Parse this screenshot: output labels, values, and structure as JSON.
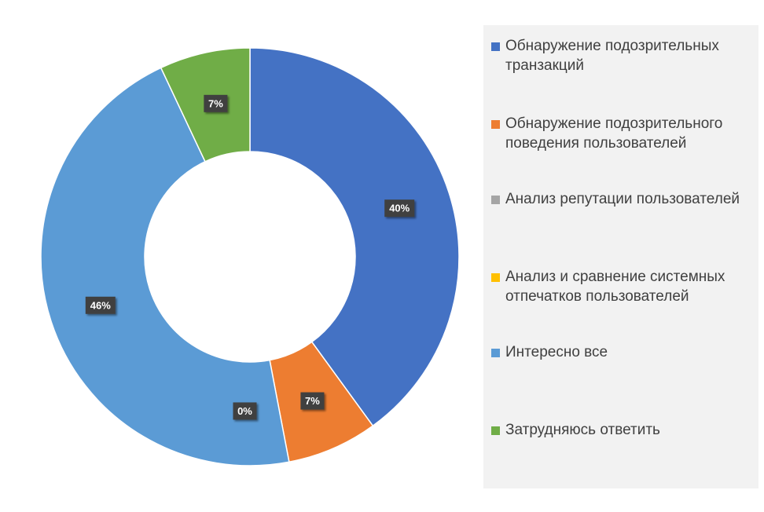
{
  "chart_data": {
    "type": "pie",
    "donut": true,
    "title": "",
    "legend_position": "right",
    "slices": [
      {
        "name": "Обнаружение подозрительных транзакций",
        "value": 40,
        "label": "40%",
        "color": "#4472c4"
      },
      {
        "name": "Обнаружение подозрительного поведения пользователей",
        "value": 7,
        "label": "7%",
        "color": "#ed7d31"
      },
      {
        "name": "Анализ репутации пользователей",
        "value": 0,
        "label": "0%",
        "color": "#a5a5a5"
      },
      {
        "name": "Анализ и сравнение системных отпечатков пользователей",
        "value": 0,
        "label": "",
        "color": "#ffc000"
      },
      {
        "name": "Интересно все",
        "value": 46,
        "label": "46%",
        "color": "#5b9bd5"
      },
      {
        "name": "Затрудняюсь ответить",
        "value": 7,
        "label": "7%",
        "color": "#70ad47"
      }
    ]
  }
}
